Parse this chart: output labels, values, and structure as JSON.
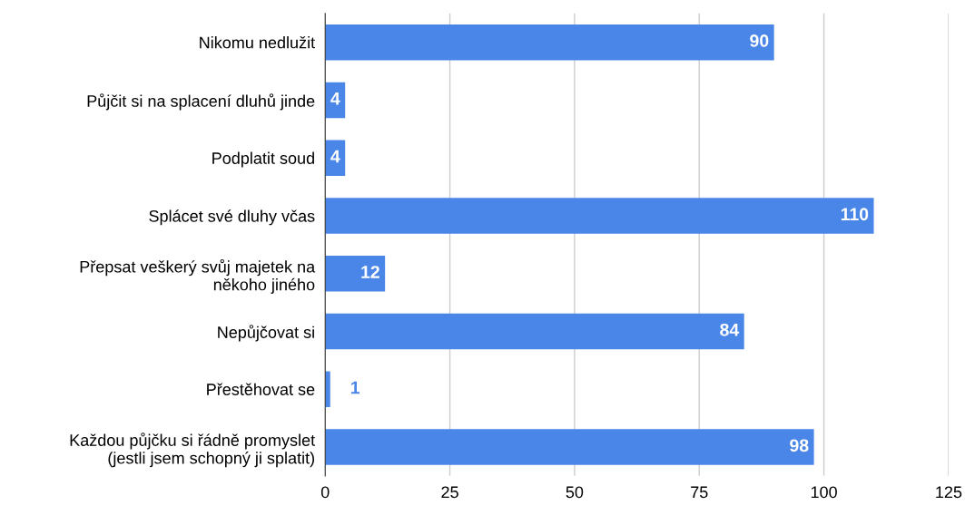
{
  "chart_data": {
    "type": "bar",
    "orientation": "horizontal",
    "categories": [
      "Nikomu nedlužit",
      "Půjčit si na splacení dluhů jinde",
      "Podplatit soud",
      "Splácet své dluhy včas",
      "Přepsat veškerý svůj majetek na\nněkoho jiného",
      "Nepůjčovat si",
      "Přestěhovat se",
      "Každou půjčku si řádně promyslet\n(jestli jsem schopný ji splatit)"
    ],
    "values": [
      90,
      4,
      4,
      110,
      12,
      84,
      1,
      98
    ],
    "color": "#4a86e8",
    "xlim": [
      0,
      125
    ],
    "xticks": [
      0,
      25,
      50,
      75,
      100,
      125
    ],
    "grid": "x",
    "data_labels": true,
    "legend": false
  }
}
